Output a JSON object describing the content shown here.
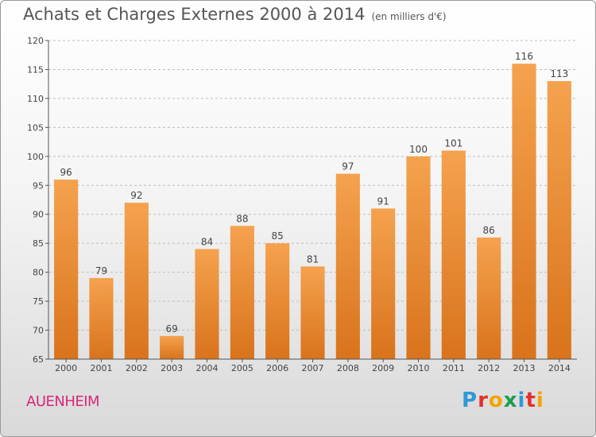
{
  "header": {
    "title": "Achats et Charges Externes 2000 à 2014",
    "subtitle": "(en milliers d'€)"
  },
  "footer": {
    "place": "AUENHEIM",
    "logo_letters": [
      "P",
      "r",
      "o",
      "x",
      "i",
      "t",
      "i"
    ],
    "logo_colors": [
      "#2e9ad6",
      "#e2312d",
      "#f4a300",
      "#1d9e4b",
      "#2e9ad6",
      "#e2312d",
      "#f4a300"
    ]
  },
  "colors": {
    "bar_top": "#f5a24e",
    "bar_bottom": "#d9731c",
    "grid": "#bdbdbd",
    "axis": "#555555"
  },
  "chart_data": {
    "type": "bar",
    "title": "Achats et Charges Externes 2000 à 2014",
    "subtitle": "(en milliers d'€)",
    "categories": [
      "2000",
      "2001",
      "2002",
      "2003",
      "2004",
      "2005",
      "2006",
      "2007",
      "2008",
      "2009",
      "2010",
      "2011",
      "2012",
      "2013",
      "2014"
    ],
    "values": [
      96,
      79,
      92,
      69,
      84,
      88,
      85,
      81,
      97,
      91,
      100,
      101,
      86,
      116,
      113
    ],
    "ylim": [
      65,
      120
    ],
    "yticks": [
      65,
      70,
      75,
      80,
      85,
      90,
      95,
      100,
      105,
      110,
      115,
      120
    ],
    "grid": true,
    "grid_axis": "y",
    "data_labels": true
  }
}
